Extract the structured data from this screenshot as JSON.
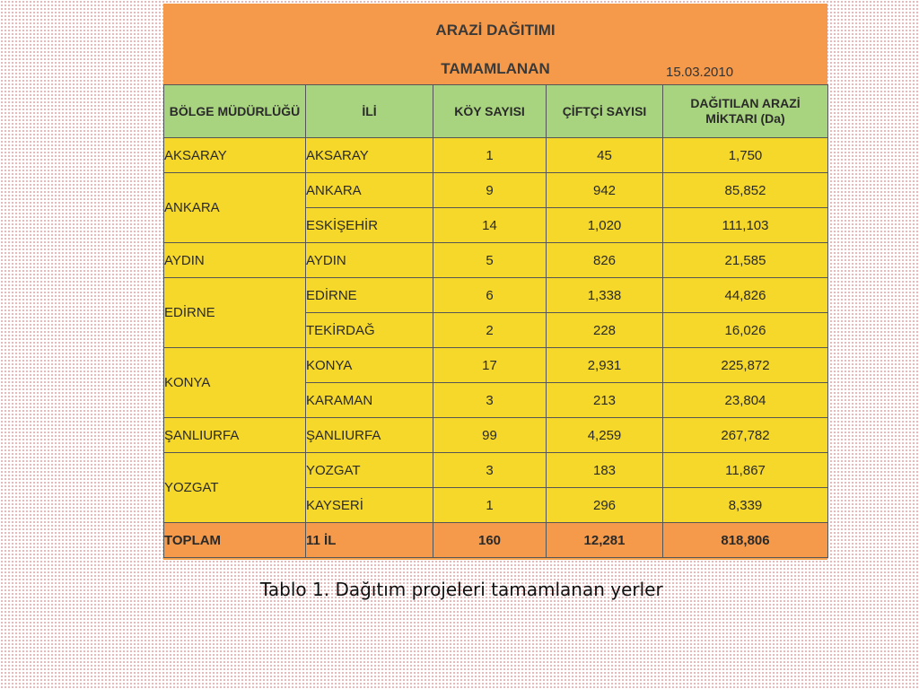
{
  "table": {
    "title": "ARAZİ DAĞITIMI",
    "subtitle": "TAMAMLANAN",
    "date": "15.03.2010",
    "headers": {
      "region": "BÖLGE MÜDÜRLÜĞÜ",
      "province": "İLİ",
      "villages": "KÖY SAYISI",
      "farmers": "ÇİFTÇİ SAYISI",
      "area": "DAĞITILAN ARAZİ MİKTARI (Da)"
    },
    "rows": [
      {
        "region": "AKSARAY",
        "province": "AKSARAY",
        "villages": "1",
        "farmers": "45",
        "area": "1,750"
      },
      {
        "region": "ANKARA",
        "province": "ANKARA",
        "villages": "9",
        "farmers": "942",
        "area": "85,852"
      },
      {
        "region": "",
        "province": "ESKİŞEHİR",
        "villages": "14",
        "farmers": "1,020",
        "area": "111,103"
      },
      {
        "region": "AYDIN",
        "province": "AYDIN",
        "villages": "5",
        "farmers": "826",
        "area": "21,585"
      },
      {
        "region": "EDİRNE",
        "province": "EDİRNE",
        "villages": "6",
        "farmers": "1,338",
        "area": "44,826"
      },
      {
        "region": "",
        "province": "TEKİRDAĞ",
        "villages": "2",
        "farmers": "228",
        "area": "16,026"
      },
      {
        "region": "KONYA",
        "province": "KONYA",
        "villages": "17",
        "farmers": "2,931",
        "area": "225,872"
      },
      {
        "region": "",
        "province": "KARAMAN",
        "villages": "3",
        "farmers": "213",
        "area": "23,804"
      },
      {
        "region": "ŞANLIURFA",
        "province": "ŞANLIURFA",
        "villages": "99",
        "farmers": "4,259",
        "area": "267,782"
      },
      {
        "region": "YOZGAT",
        "province": "YOZGAT",
        "villages": "3",
        "farmers": "183",
        "area": "11,867"
      },
      {
        "region": "",
        "province": "KAYSERİ",
        "villages": "1",
        "farmers": "296",
        "area": "8,339"
      }
    ],
    "total": {
      "region": "TOPLAM",
      "province": "11 İL",
      "villages": "160",
      "farmers": "12,281",
      "area": "818,806"
    }
  },
  "caption": "Tablo 1. Dağıtım projeleri tamamlanan yerler"
}
